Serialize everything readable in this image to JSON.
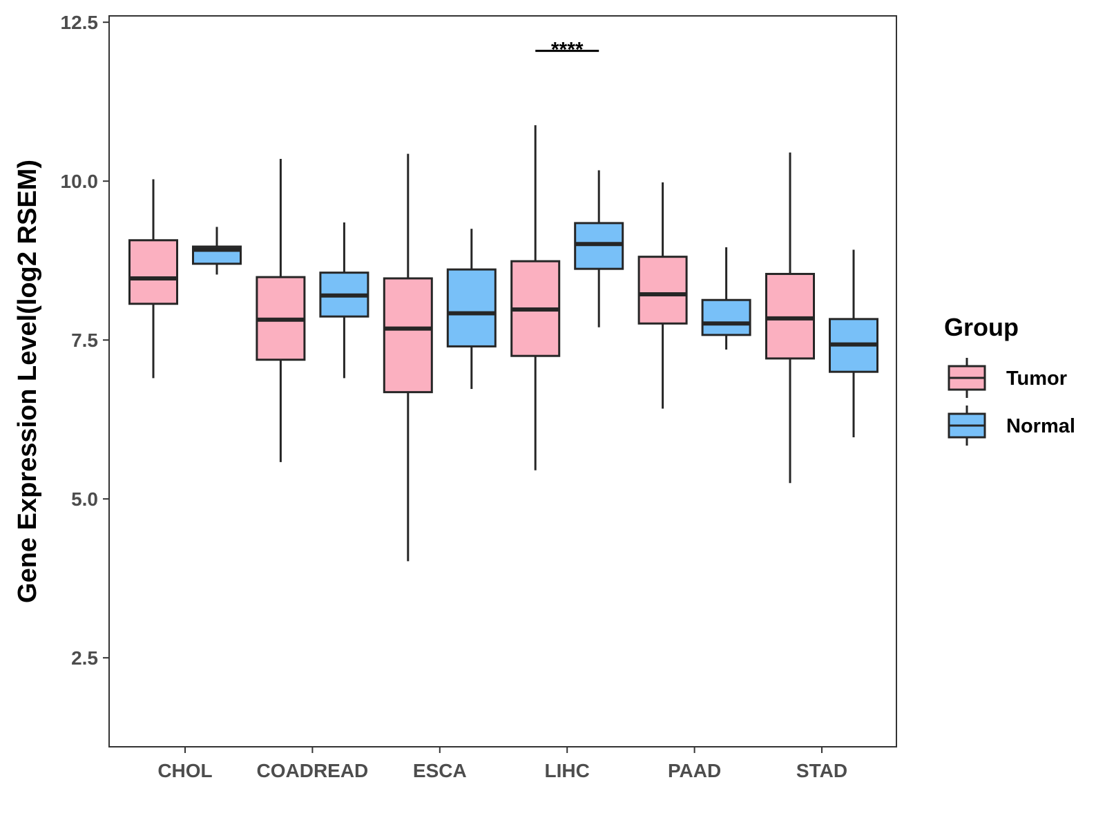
{
  "chart_data": {
    "type": "boxplot",
    "title": "",
    "xlabel": "",
    "ylabel": "Gene Expression Level(log2 RSEM)",
    "ylim": [
      1.1,
      12.6
    ],
    "yticks": [
      2.5,
      5.0,
      7.5,
      10.0,
      12.5
    ],
    "ytick_labels": [
      "2.5",
      "5.0",
      "7.5",
      "10.0",
      "12.5"
    ],
    "grid": false,
    "categories": [
      "CHOL",
      "COADREAD",
      "ESCA",
      "LIHC",
      "PAAD",
      "STAD"
    ],
    "legend": {
      "title": "Group",
      "position": "right",
      "entries": [
        "Tumor",
        "Normal"
      ]
    },
    "series": [
      {
        "name": "Tumor",
        "color": "#FBB0C0",
        "boxes": [
          {
            "whisker_low": 6.9,
            "q1": 8.07,
            "median": 8.47,
            "q3": 9.07,
            "whisker_high": 10.03
          },
          {
            "whisker_low": 5.58,
            "q1": 7.19,
            "median": 7.82,
            "q3": 8.49,
            "whisker_high": 10.35
          },
          {
            "whisker_low": 4.02,
            "q1": 6.68,
            "median": 7.68,
            "q3": 8.47,
            "whisker_high": 10.43
          },
          {
            "whisker_low": 5.45,
            "q1": 7.25,
            "median": 7.98,
            "q3": 8.74,
            "whisker_high": 10.88
          },
          {
            "whisker_low": 6.42,
            "q1": 7.76,
            "median": 8.22,
            "q3": 8.81,
            "whisker_high": 9.98
          },
          {
            "whisker_low": 5.25,
            "q1": 7.21,
            "median": 7.84,
            "q3": 8.54,
            "whisker_high": 10.45
          }
        ]
      },
      {
        "name": "Normal",
        "color": "#78C0F8",
        "boxes": [
          {
            "whisker_low": 8.53,
            "q1": 8.7,
            "median": 8.92,
            "q3": 8.97,
            "whisker_high": 9.28
          },
          {
            "whisker_low": 6.9,
            "q1": 7.87,
            "median": 8.2,
            "q3": 8.56,
            "whisker_high": 9.35
          },
          {
            "whisker_low": 6.73,
            "q1": 7.4,
            "median": 7.92,
            "q3": 8.61,
            "whisker_high": 9.25
          },
          {
            "whisker_low": 7.7,
            "q1": 8.62,
            "median": 9.01,
            "q3": 9.34,
            "whisker_high": 10.17
          },
          {
            "whisker_low": 7.35,
            "q1": 7.58,
            "median": 7.76,
            "q3": 8.13,
            "whisker_high": 8.96
          },
          {
            "whisker_low": 5.97,
            "q1": 7.0,
            "median": 7.43,
            "q3": 7.83,
            "whisker_high": 8.92
          }
        ]
      }
    ],
    "annotations": [
      {
        "category": "LIHC",
        "text": "****",
        "y": 12.05
      }
    ]
  },
  "colors": {
    "outline": "#262626",
    "axis": "#333333",
    "tick_text": "#4d4d4d"
  }
}
